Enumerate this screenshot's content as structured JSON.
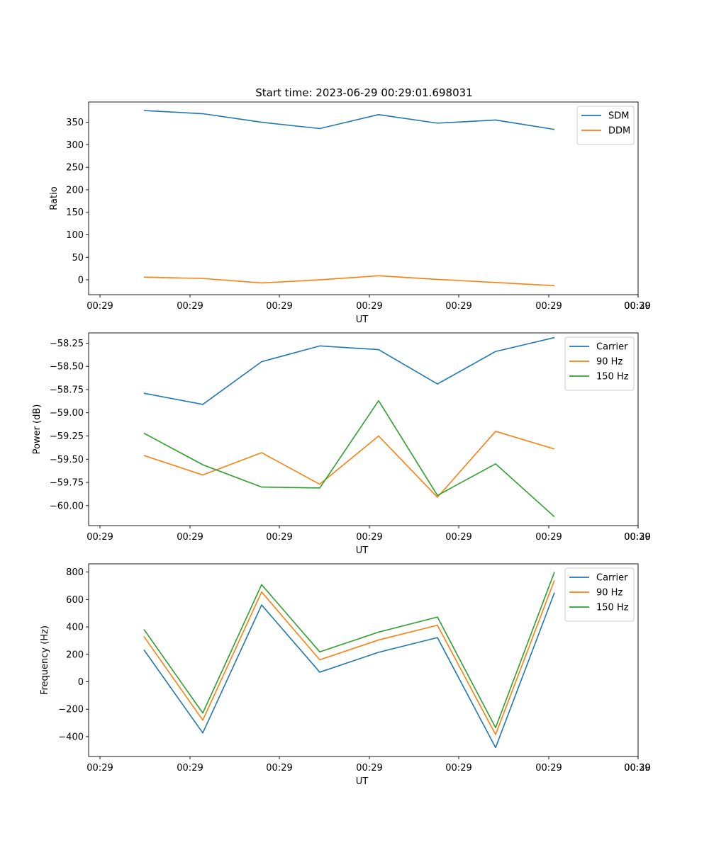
{
  "chart_data": [
    {
      "type": "line",
      "title": "Start time: 2023-06-29 00:29:01.698031",
      "xlabel": "UT",
      "ylabel": "Ratio",
      "x_tick_labels": [
        "00:29",
        "00:29",
        "00:29",
        "00:29",
        "00:29",
        "00:29",
        "00:29",
        "00:30"
      ],
      "y_ticks": [
        0,
        50,
        100,
        150,
        200,
        250,
        300,
        350
      ],
      "ylim": [
        -33,
        395
      ],
      "grid": false,
      "legend": "top-right",
      "series": [
        {
          "name": "SDM",
          "color": "#1f77b4",
          "values": [
            376,
            369,
            350,
            336,
            367,
            348,
            355,
            334
          ]
        },
        {
          "name": "DDM",
          "color": "#ff7f0e",
          "values": [
            6,
            3,
            -7,
            0,
            9,
            1,
            -6,
            -13
          ]
        }
      ]
    },
    {
      "type": "line",
      "title": "",
      "xlabel": "UT",
      "ylabel": "Power (dB)",
      "x_tick_labels": [
        "00:29",
        "00:29",
        "00:29",
        "00:29",
        "00:29",
        "00:29",
        "00:29",
        "00:30"
      ],
      "y_ticks": [
        -60.0,
        -59.75,
        -59.5,
        -59.25,
        -59.0,
        -58.75,
        -58.5,
        -58.25
      ],
      "y_tick_labels": [
        "−60.00",
        "−59.75",
        "−59.50",
        "−59.25",
        "−59.00",
        "−58.75",
        "−58.50",
        "−58.25"
      ],
      "ylim": [
        -60.215,
        -58.14
      ],
      "grid": false,
      "legend": "top-right",
      "series": [
        {
          "name": "Carrier",
          "color": "#1f77b4",
          "values": [
            -58.79,
            -58.91,
            -58.45,
            -58.28,
            -58.32,
            -58.69,
            -58.34,
            -58.19
          ]
        },
        {
          "name": "90 Hz",
          "color": "#ff7f0e",
          "values": [
            -59.46,
            -59.67,
            -59.43,
            -59.77,
            -59.25,
            -59.91,
            -59.2,
            -59.39
          ]
        },
        {
          "name": "150 Hz",
          "color": "#2ca02c",
          "values": [
            -59.22,
            -59.56,
            -59.8,
            -59.81,
            -58.87,
            -59.89,
            -59.55,
            -60.12
          ]
        }
      ]
    },
    {
      "type": "line",
      "title": "",
      "xlabel": "UT",
      "ylabel": "Frequency (Hz)",
      "x_tick_labels": [
        "00:29",
        "00:29",
        "00:29",
        "00:29",
        "00:29",
        "00:29",
        "00:29",
        "00:30"
      ],
      "y_ticks": [
        -400,
        -200,
        0,
        200,
        400,
        600,
        800
      ],
      "y_tick_labels": [
        "−400",
        "−200",
        "0",
        "200",
        "400",
        "600",
        "800"
      ],
      "ylim": [
        -545,
        860
      ],
      "grid": false,
      "legend": "top-right",
      "series": [
        {
          "name": "Carrier",
          "color": "#1f77b4",
          "values": [
            233,
            -373,
            560,
            70,
            215,
            322,
            -480,
            650
          ]
        },
        {
          "name": "90 Hz",
          "color": "#ff7f0e",
          "values": [
            330,
            -280,
            655,
            160,
            305,
            412,
            -385,
            740
          ]
        },
        {
          "name": "150 Hz",
          "color": "#2ca02c",
          "values": [
            382,
            -228,
            708,
            218,
            362,
            472,
            -335,
            800
          ]
        }
      ]
    }
  ]
}
